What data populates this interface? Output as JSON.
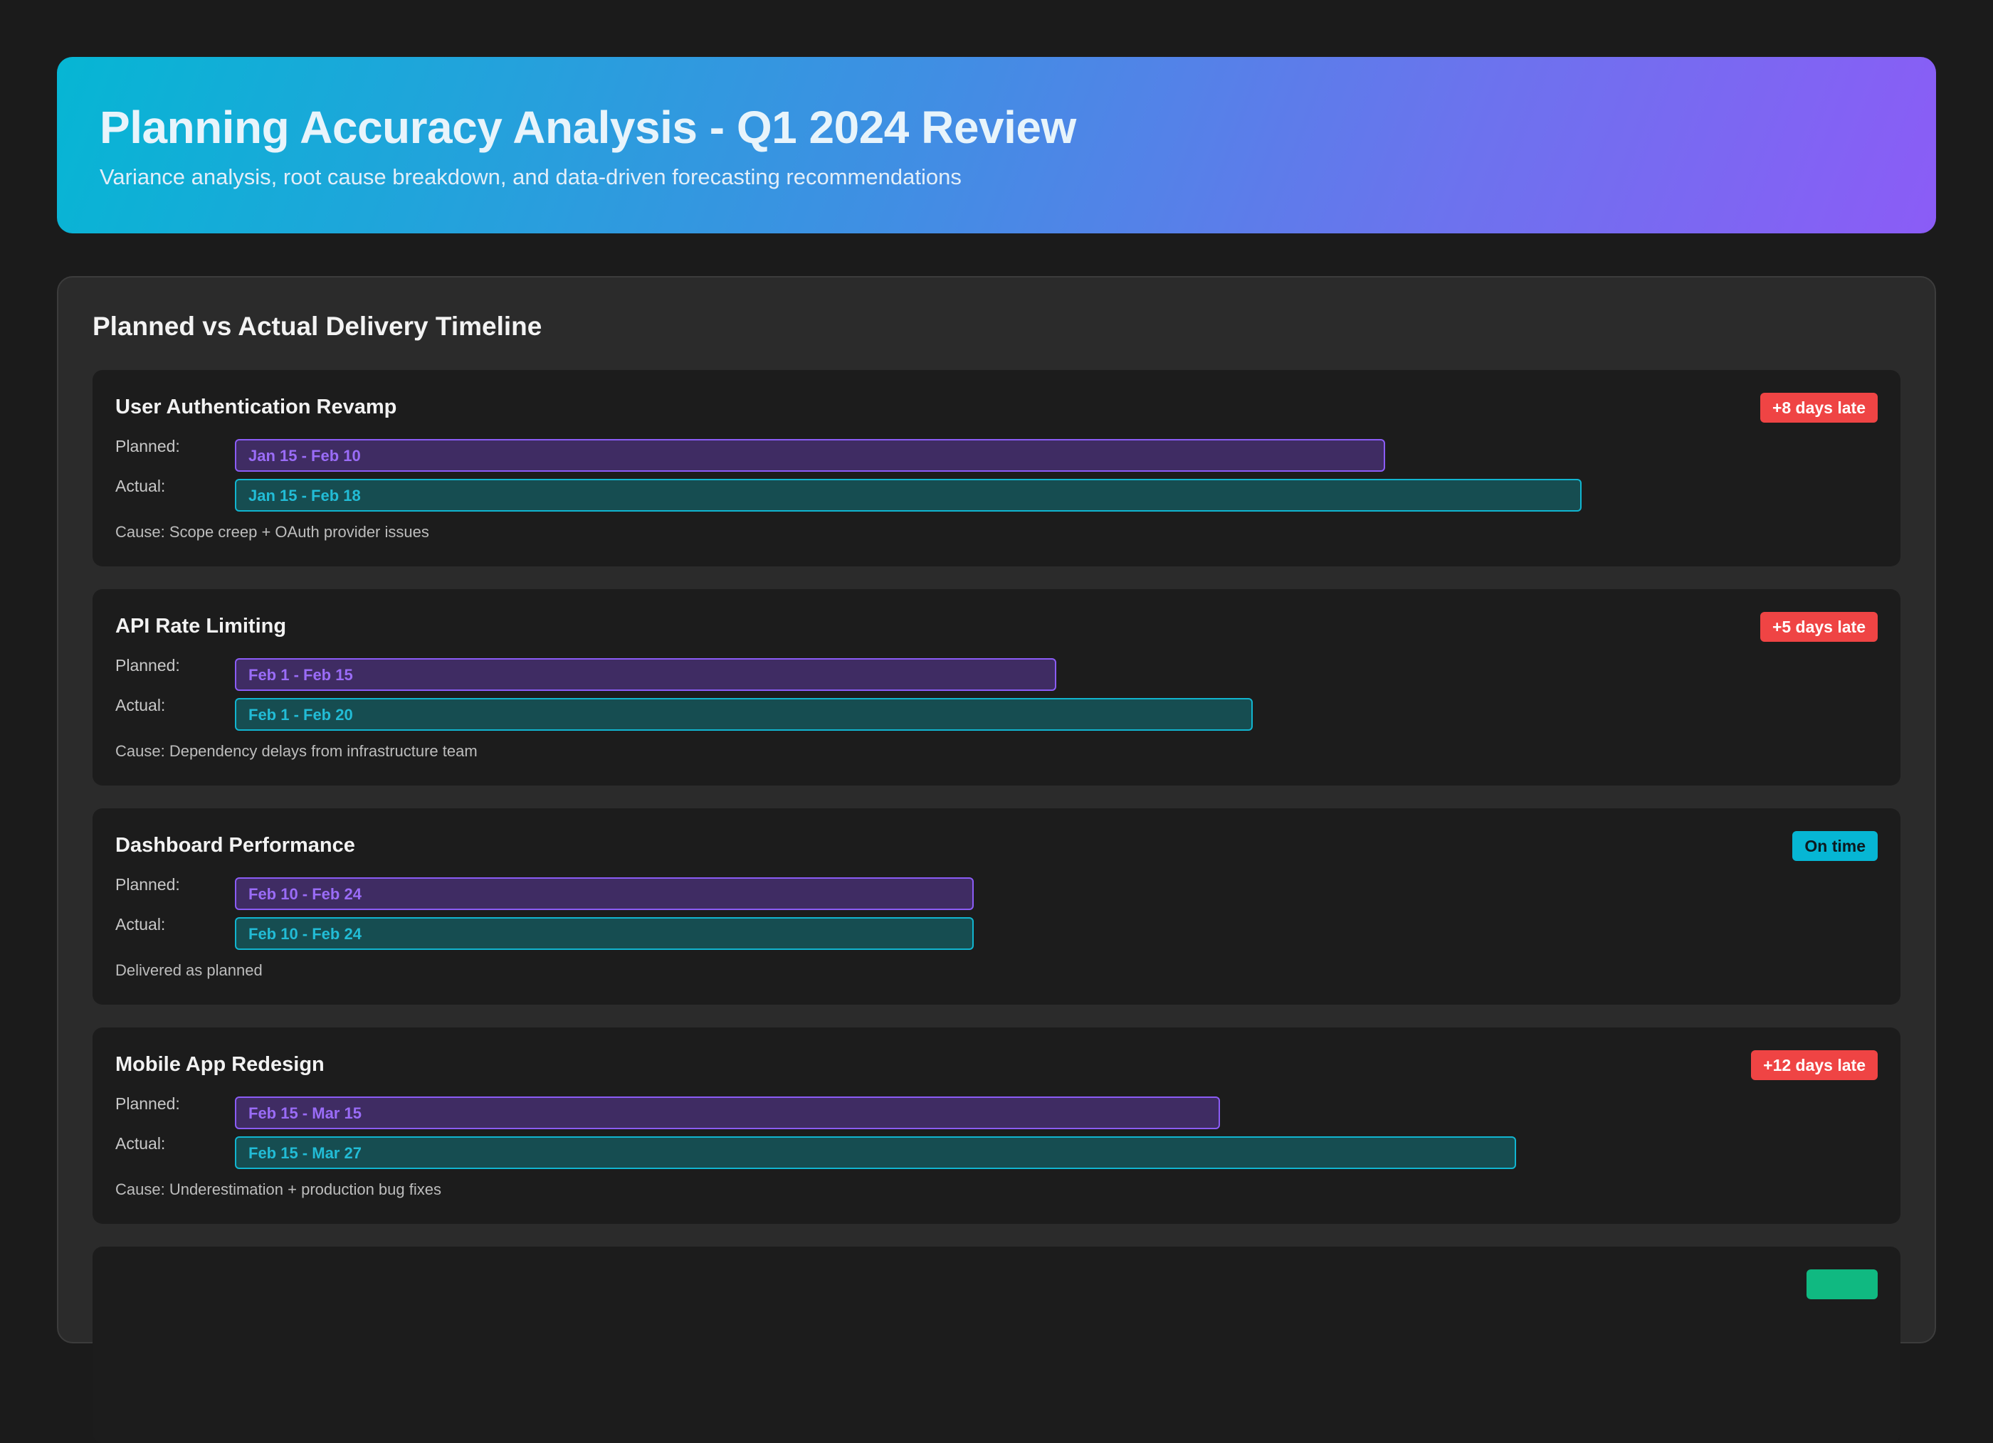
{
  "header": {
    "title": "Planning Accuracy Analysis - Q1 2024 Review",
    "subtitle": "Variance analysis, root cause breakdown, and data-driven forecasting recommendations",
    "gradient_colors": [
      "#06b6d4",
      "#8b5cf6"
    ]
  },
  "timeline": {
    "title": "Planned vs Actual Delivery Timeline",
    "planned_label": "Planned:",
    "actual_label": "Actual:",
    "colors": {
      "planned": "#8b5cf6",
      "actual": "#06b6d4",
      "late_badge": "#ef4444",
      "ontime_badge": "#06b6d4",
      "early_badge": "#10b981"
    },
    "projects": [
      {
        "name": "User Authentication Revamp",
        "badge": "+8 days late",
        "status": "late",
        "planned": "Jan 15 - Feb 10",
        "actual": "Jan 15 - Feb 18",
        "note": "Cause: Scope creep + OAuth provider issues"
      },
      {
        "name": "API Rate Limiting",
        "badge": "+5 days late",
        "status": "late",
        "planned": "Feb 1 - Feb 15",
        "actual": "Feb 1 - Feb 20",
        "note": "Cause: Dependency delays from infrastructure team"
      },
      {
        "name": "Dashboard Performance",
        "badge": "On time",
        "status": "ontime",
        "planned": "Feb 10 - Feb 24",
        "actual": "Feb 10 - Feb 24",
        "note": "Delivered as planned"
      },
      {
        "name": "Mobile App Redesign",
        "badge": "+12 days late",
        "status": "late",
        "planned": "Feb 15 - Mar 15",
        "actual": "Feb 15 - Mar 27",
        "note": "Cause: Underestimation + production bug fixes"
      }
    ]
  }
}
